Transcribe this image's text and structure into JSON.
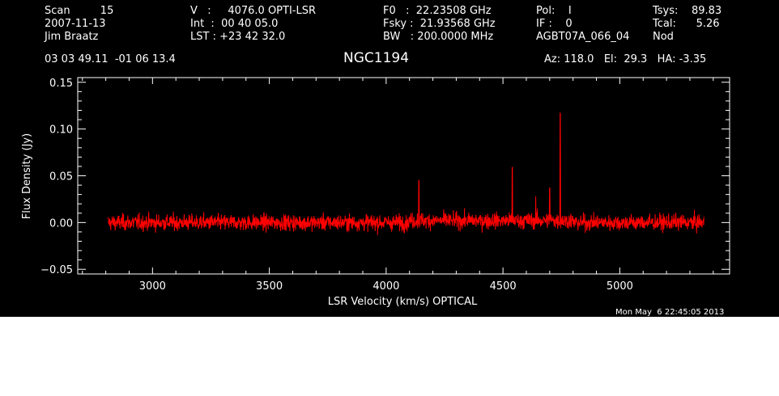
{
  "header": {
    "col1": [
      "Scan         15",
      "2007-11-13",
      "Jim Braatz"
    ],
    "col2": [
      "V   :     4076.0 OPTI-LSR",
      "Int  :  00 40 05.0",
      "LST : +23 42 32.0"
    ],
    "col3": [
      "F0   :  22.23508 GHz",
      "Fsky :  21.93568 GHz",
      "BW   : 200.0000 MHz"
    ],
    "col4": [
      "Pol:    I",
      "IF :    0",
      "AGBT07A_066_04"
    ],
    "col5": [
      "Tsys:    89.83",
      "Tcal:      5.26",
      "Nod"
    ],
    "coords": "03 03 49.11  -01 06 13.4",
    "source": "NGC1194",
    "pointing": "Az: 118.0   El:  29.3   HA: -3.35",
    "timestamp": "Mon May  6 22:45:05 2013"
  },
  "chart_data": {
    "type": "line",
    "xlabel": "LSR Velocity (km/s) OPTICAL",
    "ylabel": "Flux Density (Jy)",
    "xlim": [
      2680,
      5470
    ],
    "ylim": [
      -0.055,
      0.155
    ],
    "xticks": [
      3000,
      3500,
      4000,
      4500,
      5000
    ],
    "xtick_labels": [
      "3000",
      "3500",
      "4000",
      "4500",
      "5000"
    ],
    "yticks": [
      -0.05,
      0.0,
      0.05,
      0.1,
      0.15
    ],
    "ytick_labels": [
      "−0.05",
      "0.00",
      "0.05",
      "0.10",
      "0.15"
    ],
    "series_color": "#ff0000",
    "x_range": [
      2810,
      5360
    ],
    "noise_rms": 0.006,
    "features": [
      {
        "x": 4140,
        "y": 0.043
      },
      {
        "x": 4540,
        "y": 0.057
      },
      {
        "x": 4640,
        "y": 0.026
      },
      {
        "x": 4700,
        "y": 0.035
      },
      {
        "x": 4745,
        "y": 0.115
      }
    ]
  }
}
